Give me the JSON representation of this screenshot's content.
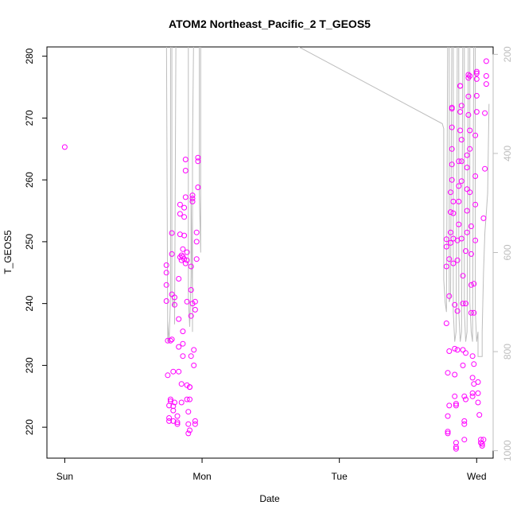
{
  "chart_data": {
    "type": "scatter",
    "title": "ATOM2 Northeast_Pacific_2 T_GEOS5",
    "xlabel": "Date",
    "ylabel": "T_GEOS5",
    "x_ticks": [
      "Sun",
      "Mon",
      "Tue",
      "Wed"
    ],
    "x_tick_days": [
      0,
      1,
      2,
      3
    ],
    "xlim_days": [
      -0.13,
      3.12
    ],
    "ylim": [
      215,
      281.5
    ],
    "y_ticks": [
      220,
      230,
      240,
      250,
      260,
      270,
      280
    ],
    "y2_ticks": [
      200,
      400,
      600,
      800,
      1000
    ],
    "y2lim": [
      1015,
      185
    ],
    "y2_reversed": true,
    "point_color": "#ff00ff",
    "line_color": "#bdbdbd",
    "grid": false,
    "series": [
      {
        "marker": "open-circle",
        "points": [
          [
            0.0,
            265.3
          ],
          [
            0.74,
            246.2
          ],
          [
            0.74,
            245.0
          ],
          [
            0.74,
            243.0
          ],
          [
            0.74,
            240.4
          ],
          [
            0.75,
            234.0
          ],
          [
            0.75,
            228.4
          ],
          [
            0.76,
            221.5
          ],
          [
            0.76,
            221.0
          ],
          [
            0.76,
            223.5
          ],
          [
            0.77,
            224.5
          ],
          [
            0.77,
            224.2
          ],
          [
            0.77,
            234.0
          ],
          [
            0.78,
            241.5
          ],
          [
            0.78,
            248.0
          ],
          [
            0.78,
            251.4
          ],
          [
            0.78,
            234.2
          ],
          [
            0.79,
            229.0
          ],
          [
            0.79,
            222.7
          ],
          [
            0.79,
            221.0
          ],
          [
            0.79,
            223.4
          ],
          [
            0.8,
            241.0
          ],
          [
            0.8,
            239.8
          ],
          [
            0.8,
            224.0
          ],
          [
            0.82,
            220.8
          ],
          [
            0.82,
            221.8
          ],
          [
            0.82,
            220.5
          ],
          [
            0.83,
            229.0
          ],
          [
            0.83,
            233.0
          ],
          [
            0.83,
            237.5
          ],
          [
            0.83,
            244.0
          ],
          [
            0.84,
            247.5
          ],
          [
            0.84,
            251.2
          ],
          [
            0.84,
            254.5
          ],
          [
            0.84,
            256.0
          ],
          [
            0.85,
            247.0
          ],
          [
            0.85,
            247.8
          ],
          [
            0.85,
            227.0
          ],
          [
            0.85,
            224.0
          ],
          [
            0.86,
            233.5
          ],
          [
            0.86,
            235.5
          ],
          [
            0.86,
            231.5
          ],
          [
            0.86,
            247.6
          ],
          [
            0.86,
            248.8
          ],
          [
            0.87,
            251.0
          ],
          [
            0.87,
            255.5
          ],
          [
            0.87,
            254.0
          ],
          [
            0.87,
            247.2
          ],
          [
            0.88,
            246.5
          ],
          [
            0.88,
            257.2
          ],
          [
            0.88,
            261.5
          ],
          [
            0.88,
            263.3
          ],
          [
            0.89,
            248.3
          ],
          [
            0.89,
            247.0
          ],
          [
            0.89,
            240.3
          ],
          [
            0.89,
            226.8
          ],
          [
            0.89,
            224.5
          ],
          [
            0.9,
            222.5
          ],
          [
            0.9,
            220.5
          ],
          [
            0.9,
            219.0
          ],
          [
            0.91,
            226.5
          ],
          [
            0.91,
            226.5
          ],
          [
            0.91,
            224.5
          ],
          [
            0.91,
            219.5
          ],
          [
            0.92,
            231.5
          ],
          [
            0.92,
            238.0
          ],
          [
            0.92,
            242.2
          ],
          [
            0.92,
            246.0
          ],
          [
            0.93,
            256.5
          ],
          [
            0.93,
            257.0
          ],
          [
            0.93,
            257.5
          ],
          [
            0.93,
            240.0
          ],
          [
            0.94,
            232.5
          ],
          [
            0.94,
            230.0
          ],
          [
            0.95,
            221.0
          ],
          [
            0.95,
            220.5
          ],
          [
            0.95,
            239.0
          ],
          [
            0.95,
            240.3
          ],
          [
            0.96,
            247.2
          ],
          [
            0.96,
            250.0
          ],
          [
            0.96,
            251.5
          ],
          [
            0.97,
            258.8
          ],
          [
            0.97,
            263.0
          ],
          [
            0.97,
            263.6
          ],
          [
            2.78,
            250.4
          ],
          [
            2.78,
            249.2
          ],
          [
            2.78,
            246.0
          ],
          [
            2.78,
            236.8
          ],
          [
            2.79,
            228.8
          ],
          [
            2.79,
            221.8
          ],
          [
            2.79,
            219.3
          ],
          [
            2.79,
            219.0
          ],
          [
            2.8,
            223.5
          ],
          [
            2.8,
            232.3
          ],
          [
            2.8,
            241.2
          ],
          [
            2.8,
            247.2
          ],
          [
            2.81,
            249.8
          ],
          [
            2.81,
            251.5
          ],
          [
            2.81,
            254.8
          ],
          [
            2.81,
            258.0
          ],
          [
            2.82,
            260.0
          ],
          [
            2.82,
            262.5
          ],
          [
            2.82,
            265.0
          ],
          [
            2.82,
            268.5
          ],
          [
            2.82,
            271.5
          ],
          [
            2.82,
            271.7
          ],
          [
            2.83,
            256.5
          ],
          [
            2.83,
            254.6
          ],
          [
            2.83,
            250.5
          ],
          [
            2.83,
            246.5
          ],
          [
            2.84,
            239.8
          ],
          [
            2.84,
            232.7
          ],
          [
            2.84,
            228.5
          ],
          [
            2.84,
            225.0
          ],
          [
            2.85,
            223.5
          ],
          [
            2.85,
            217.5
          ],
          [
            2.85,
            216.8
          ],
          [
            2.85,
            216.5
          ],
          [
            2.85,
            223.8
          ],
          [
            2.86,
            232.5
          ],
          [
            2.86,
            238.8
          ],
          [
            2.86,
            247.0
          ],
          [
            2.86,
            250.2
          ],
          [
            2.87,
            252.8
          ],
          [
            2.87,
            256.5
          ],
          [
            2.87,
            259.0
          ],
          [
            2.87,
            263.0
          ],
          [
            2.88,
            268.0
          ],
          [
            2.88,
            271.0
          ],
          [
            2.88,
            275.2
          ],
          [
            2.88,
            275.2
          ],
          [
            2.89,
            272.0
          ],
          [
            2.89,
            266.5
          ],
          [
            2.89,
            263.0
          ],
          [
            2.89,
            259.8
          ],
          [
            2.89,
            250.5
          ],
          [
            2.9,
            244.5
          ],
          [
            2.9,
            240.0
          ],
          [
            2.9,
            232.5
          ],
          [
            2.9,
            230.0
          ],
          [
            2.91,
            225.0
          ],
          [
            2.91,
            221.0
          ],
          [
            2.91,
            220.5
          ],
          [
            2.91,
            218.0
          ],
          [
            2.92,
            224.5
          ],
          [
            2.92,
            232.0
          ],
          [
            2.92,
            240.0
          ],
          [
            2.92,
            248.5
          ],
          [
            2.93,
            251.5
          ],
          [
            2.93,
            255.0
          ],
          [
            2.93,
            258.5
          ],
          [
            2.93,
            262.0
          ],
          [
            2.93,
            264.0
          ],
          [
            2.94,
            270.5
          ],
          [
            2.94,
            273.5
          ],
          [
            2.94,
            276.5
          ],
          [
            2.94,
            277.0
          ],
          [
            2.95,
            276.8
          ],
          [
            2.95,
            268.0
          ],
          [
            2.95,
            265.0
          ],
          [
            2.95,
            258.0
          ],
          [
            2.96,
            252.5
          ],
          [
            2.96,
            248.0
          ],
          [
            2.96,
            243.0
          ],
          [
            2.96,
            238.5
          ],
          [
            2.97,
            231.5
          ],
          [
            2.97,
            228.0
          ],
          [
            2.97,
            225.5
          ],
          [
            2.97,
            225.0
          ],
          [
            2.98,
            227.0
          ],
          [
            2.98,
            230.2
          ],
          [
            2.98,
            238.5
          ],
          [
            2.98,
            243.2
          ],
          [
            2.99,
            250.2
          ],
          [
            2.99,
            256.0
          ],
          [
            2.99,
            260.6
          ],
          [
            2.99,
            267.2
          ],
          [
            3.0,
            271.0
          ],
          [
            3.0,
            273.6
          ],
          [
            3.0,
            276.3
          ],
          [
            3.0,
            277.5
          ],
          [
            3.0,
            277.2
          ],
          [
            3.01,
            227.3
          ],
          [
            3.01,
            225.5
          ],
          [
            3.01,
            224.0
          ],
          [
            3.02,
            222.0
          ],
          [
            3.03,
            218.0
          ],
          [
            3.03,
            217.5
          ],
          [
            3.04,
            217.0
          ],
          [
            3.04,
            217.3
          ],
          [
            3.05,
            218.0
          ],
          [
            3.05,
            253.8
          ],
          [
            3.06,
            261.8
          ],
          [
            3.06,
            270.8
          ],
          [
            3.07,
            275.5
          ],
          [
            3.07,
            276.8
          ],
          [
            3.07,
            279.2
          ]
        ]
      },
      {
        "axis": "right",
        "type": "line",
        "points": [
          [
            0.74,
            125
          ],
          [
            0.75,
            780
          ],
          [
            0.75,
            740
          ],
          [
            0.76,
            780
          ],
          [
            0.77,
            690
          ],
          [
            0.77,
            125
          ],
          [
            0.78,
            125
          ],
          [
            0.78,
            690
          ],
          [
            0.79,
            710
          ],
          [
            0.8,
            690
          ],
          [
            0.8,
            720
          ],
          [
            0.8,
            745
          ],
          [
            0.81,
            125
          ],
          [
            0.82,
            125
          ],
          [
            0.83,
            125
          ],
          [
            0.84,
            125
          ],
          [
            0.85,
            125
          ],
          [
            0.86,
            125
          ],
          [
            0.87,
            125
          ],
          [
            0.88,
            125
          ],
          [
            0.89,
            125
          ],
          [
            0.9,
            125
          ],
          [
            0.9,
            690
          ],
          [
            0.91,
            750
          ],
          [
            0.92,
            650
          ],
          [
            0.92,
            490
          ],
          [
            0.93,
            690
          ],
          [
            0.93,
            760
          ],
          [
            0.93,
            390
          ],
          [
            0.94,
            125
          ],
          [
            0.95,
            125
          ],
          [
            0.96,
            125
          ],
          [
            0.97,
            125
          ],
          [
            0.98,
            125
          ],
          [
            0.98,
            480
          ],
          [
            0.99,
            600
          ],
          [
            0.99,
            125
          ],
          [
            1.0,
            125
          ],
          [
            1.3,
            125
          ],
          [
            1.3,
            125
          ],
          [
            2.75,
            340
          ],
          [
            2.76,
            350
          ],
          [
            2.76,
            655
          ],
          [
            2.77,
            700
          ],
          [
            2.78,
            720
          ],
          [
            2.79,
            125
          ],
          [
            2.8,
            125
          ],
          [
            2.8,
            700
          ],
          [
            2.81,
            690
          ],
          [
            2.82,
            125
          ],
          [
            2.83,
            125
          ],
          [
            2.83,
            720
          ],
          [
            2.84,
            780
          ],
          [
            2.85,
            760
          ],
          [
            2.86,
            125
          ],
          [
            2.87,
            125
          ],
          [
            2.87,
            720
          ],
          [
            2.88,
            780
          ],
          [
            2.89,
            760
          ],
          [
            2.9,
            125
          ],
          [
            2.91,
            125
          ],
          [
            2.91,
            720
          ],
          [
            2.92,
            780
          ],
          [
            2.93,
            760
          ],
          [
            2.94,
            125
          ],
          [
            2.95,
            125
          ],
          [
            2.95,
            700
          ],
          [
            2.96,
            760
          ],
          [
            2.97,
            780
          ],
          [
            2.98,
            125
          ],
          [
            2.99,
            125
          ],
          [
            2.99,
            720
          ],
          [
            3.0,
            780
          ],
          [
            3.01,
            760
          ],
          [
            3.01,
            810
          ],
          [
            3.02,
            810
          ],
          [
            3.03,
            810
          ],
          [
            3.04,
            810
          ],
          [
            3.04,
            760
          ],
          [
            3.05,
            640
          ],
          [
            3.06,
            560
          ],
          [
            3.07,
            520
          ],
          [
            3.08,
            480
          ],
          [
            3.09,
            300
          ]
        ]
      }
    ]
  }
}
